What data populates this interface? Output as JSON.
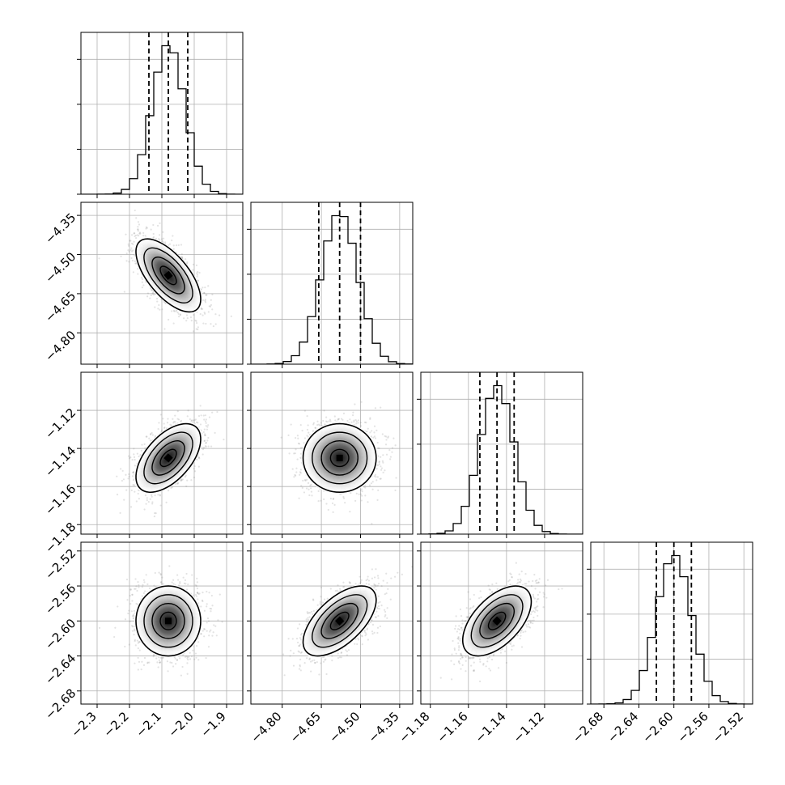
{
  "colors": {
    "background": "#ffffff",
    "axes": "#000000",
    "grid": "#b0b0b0",
    "scatter": "#7f7f7f",
    "density_dark": "#000000",
    "density_light": "#ffffff"
  },
  "chart_data": {
    "type": "corner",
    "grid": true,
    "parameters": [
      {
        "range": [
          -2.35,
          -1.85
        ],
        "ticks": [
          -2.3,
          -2.2,
          -2.1,
          -2.0,
          -1.9
        ],
        "tick_labels": [
          "−2.3",
          "−2.2",
          "−2.1",
          "−2.0",
          "−1.9"
        ],
        "mean": -2.08,
        "sd": 0.05,
        "quantiles": [
          -2.14,
          -2.08,
          -2.02
        ]
      },
      {
        "range": [
          -4.92,
          -4.3
        ],
        "ticks": [
          -4.8,
          -4.65,
          -4.5,
          -4.35
        ],
        "tick_labels": [
          "−4.80",
          "−4.65",
          "−4.50",
          "−4.35"
        ],
        "mean": -4.58,
        "sd": 0.07,
        "quantiles": [
          -4.66,
          -4.58,
          -4.5
        ]
      },
      {
        "range": [
          -1.185,
          -1.1
        ],
        "ticks": [
          -1.18,
          -1.16,
          -1.14,
          -1.12
        ],
        "tick_labels": [
          "−1.18",
          "−1.16",
          "−1.14",
          "−1.12"
        ],
        "mean": -1.145,
        "sd": 0.009,
        "quantiles": [
          -1.154,
          -1.145,
          -1.136
        ]
      },
      {
        "range": [
          -2.695,
          -2.51
        ],
        "ticks": [
          -2.68,
          -2.64,
          -2.6,
          -2.56,
          -2.52
        ],
        "tick_labels": [
          "−2.68",
          "−2.64",
          "−2.60",
          "−2.56",
          "−2.52"
        ],
        "mean": -2.6,
        "sd": 0.02,
        "quantiles": [
          -2.62,
          -2.6,
          -2.58
        ]
      }
    ],
    "correlations": {
      "1,0": -0.65,
      "2,0": 0.55,
      "2,1": 0.0,
      "3,0": 0.0,
      "3,1": 0.6,
      "3,2": 0.55
    },
    "histogram_bins": 20,
    "contour_levels": [
      0.5,
      1.0,
      1.5,
      2.0
    ]
  }
}
